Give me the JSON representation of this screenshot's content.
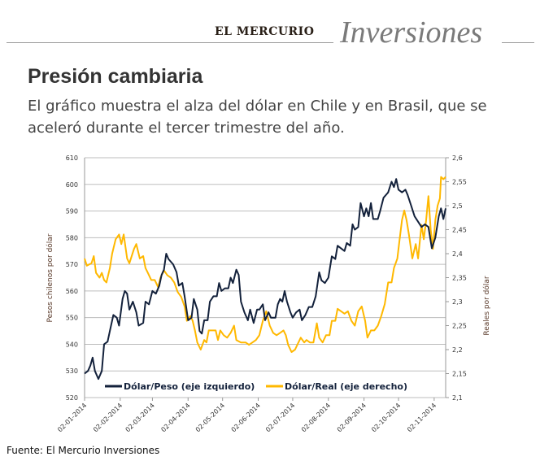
{
  "header": {
    "brand": "EL MERCURIO",
    "section": "Inversiones"
  },
  "title": "Presión cambiaria",
  "subtitle": "El gráfico muestra el alza del dólar en Chile y en Brasil, que se aceleró durante el tercer trimestre del año.",
  "source": "Fuente: El Mercurio Inversiones",
  "chart_data": {
    "type": "line",
    "xlabel": "",
    "ylabel": "Pesos chilenos por dólar",
    "y2label": "Reales por dólar",
    "xlim": [
      "2014-01-02",
      "2014-11-12"
    ],
    "ylim": [
      520,
      610
    ],
    "y2lim": [
      2.1,
      2.6
    ],
    "grid": true,
    "legend": "bottom-inside",
    "x_ticks": [
      "2014-01-02",
      "2014-02-02",
      "2014-03-02",
      "2014-04-02",
      "2014-05-02",
      "2014-06-02",
      "2014-07-02",
      "2014-08-02",
      "2014-09-02",
      "2014-10-02",
      "2014-11-02"
    ],
    "x_tick_labels": [
      "02-01-2014",
      "02-02-2014",
      "02-03-2014",
      "02-04-2014",
      "02-05-2014",
      "02-06-2014",
      "02-07-2014",
      "02-08-2014",
      "02-09-2014",
      "02-10-2014",
      "02-11-2014"
    ],
    "y_tick_labels": [
      "520",
      "530",
      "540",
      "550",
      "560",
      "570",
      "580",
      "590",
      "600",
      "610"
    ],
    "y2_tick_labels": [
      "2,1",
      "2,15",
      "2,2",
      "2,25",
      "2,3",
      "2,35",
      "2,4",
      "2,45",
      "2,5",
      "2,55",
      "2,6"
    ],
    "series": [
      {
        "name": "Dólar/Peso (eje izquierdo)",
        "axis": "left",
        "color": "#13213b",
        "points": [
          [
            "2014-01-02",
            529
          ],
          [
            "2014-01-05",
            530
          ],
          [
            "2014-01-07",
            532
          ],
          [
            "2014-01-09",
            535
          ],
          [
            "2014-01-11",
            530
          ],
          [
            "2014-01-14",
            527
          ],
          [
            "2014-01-17",
            530
          ],
          [
            "2014-01-19",
            540
          ],
          [
            "2014-01-22",
            541
          ],
          [
            "2014-01-24",
            545
          ],
          [
            "2014-01-27",
            551
          ],
          [
            "2014-01-30",
            550
          ],
          [
            "2014-02-01",
            547
          ],
          [
            "2014-02-04",
            557
          ],
          [
            "2014-02-06",
            560
          ],
          [
            "2014-02-08",
            559
          ],
          [
            "2014-02-10",
            553
          ],
          [
            "2014-02-13",
            556
          ],
          [
            "2014-02-16",
            552
          ],
          [
            "2014-02-18",
            547
          ],
          [
            "2014-02-22",
            548
          ],
          [
            "2014-02-24",
            556
          ],
          [
            "2014-02-27",
            555
          ],
          [
            "2014-03-02",
            560
          ],
          [
            "2014-03-05",
            559
          ],
          [
            "2014-03-08",
            562
          ],
          [
            "2014-03-10",
            566
          ],
          [
            "2014-03-12",
            568
          ],
          [
            "2014-03-14",
            574
          ],
          [
            "2014-03-16",
            572
          ],
          [
            "2014-03-20",
            570
          ],
          [
            "2014-03-23",
            567
          ],
          [
            "2014-03-25",
            562
          ],
          [
            "2014-03-28",
            563
          ],
          [
            "2014-03-30",
            558
          ],
          [
            "2014-04-02",
            549
          ],
          [
            "2014-04-05",
            550
          ],
          [
            "2014-04-07",
            557
          ],
          [
            "2014-04-10",
            553
          ],
          [
            "2014-04-12",
            545
          ],
          [
            "2014-04-14",
            544
          ],
          [
            "2014-04-16",
            549
          ],
          [
            "2014-04-19",
            549
          ],
          [
            "2014-04-21",
            556
          ],
          [
            "2014-04-24",
            558
          ],
          [
            "2014-04-27",
            558
          ],
          [
            "2014-04-29",
            563
          ],
          [
            "2014-05-01",
            560
          ],
          [
            "2014-05-04",
            561
          ],
          [
            "2014-05-07",
            561
          ],
          [
            "2014-05-09",
            565
          ],
          [
            "2014-05-11",
            563
          ],
          [
            "2014-05-14",
            568
          ],
          [
            "2014-05-16",
            566
          ],
          [
            "2014-05-18",
            556
          ],
          [
            "2014-05-21",
            552
          ],
          [
            "2014-05-24",
            549
          ],
          [
            "2014-05-26",
            553
          ],
          [
            "2014-05-29",
            548
          ],
          [
            "2014-06-01",
            553
          ],
          [
            "2014-06-03",
            553
          ],
          [
            "2014-06-06",
            555
          ],
          [
            "2014-06-08",
            549
          ],
          [
            "2014-06-11",
            552
          ],
          [
            "2014-06-13",
            550
          ],
          [
            "2014-06-17",
            550
          ],
          [
            "2014-06-19",
            555
          ],
          [
            "2014-06-21",
            557
          ],
          [
            "2014-06-23",
            556
          ],
          [
            "2014-06-25",
            560
          ],
          [
            "2014-06-27",
            556
          ],
          [
            "2014-06-30",
            552
          ],
          [
            "2014-07-02",
            550
          ],
          [
            "2014-07-05",
            552
          ],
          [
            "2014-07-08",
            553
          ],
          [
            "2014-07-10",
            549
          ],
          [
            "2014-07-13",
            551
          ],
          [
            "2014-07-16",
            554
          ],
          [
            "2014-07-19",
            554
          ],
          [
            "2014-07-22",
            558
          ],
          [
            "2014-07-25",
            567
          ],
          [
            "2014-07-27",
            564
          ],
          [
            "2014-07-30",
            563
          ],
          [
            "2014-08-02",
            565
          ],
          [
            "2014-08-05",
            573
          ],
          [
            "2014-08-08",
            572
          ],
          [
            "2014-08-10",
            577
          ],
          [
            "2014-08-13",
            576
          ],
          [
            "2014-08-16",
            575
          ],
          [
            "2014-08-18",
            578
          ],
          [
            "2014-08-21",
            577
          ],
          [
            "2014-08-23",
            585
          ],
          [
            "2014-08-25",
            583
          ],
          [
            "2014-08-28",
            584
          ],
          [
            "2014-08-30",
            593
          ],
          [
            "2014-09-02",
            588
          ],
          [
            "2014-09-04",
            591
          ],
          [
            "2014-09-06",
            588
          ],
          [
            "2014-09-08",
            593
          ],
          [
            "2014-09-10",
            587
          ],
          [
            "2014-09-14",
            587
          ],
          [
            "2014-09-16",
            590
          ],
          [
            "2014-09-19",
            595
          ],
          [
            "2014-09-21",
            596
          ],
          [
            "2014-09-23",
            597
          ],
          [
            "2014-09-26",
            601
          ],
          [
            "2014-09-28",
            599
          ],
          [
            "2014-09-30",
            602
          ],
          [
            "2014-10-02",
            598
          ],
          [
            "2014-10-05",
            597
          ],
          [
            "2014-10-08",
            598
          ],
          [
            "2014-10-10",
            596
          ],
          [
            "2014-10-13",
            592
          ],
          [
            "2014-10-16",
            588
          ],
          [
            "2014-10-19",
            586
          ],
          [
            "2014-10-22",
            584
          ],
          [
            "2014-10-25",
            585
          ],
          [
            "2014-10-28",
            584
          ],
          [
            "2014-10-31",
            576
          ],
          [
            "2014-11-03",
            580
          ],
          [
            "2014-11-06",
            588
          ],
          [
            "2014-11-08",
            591
          ],
          [
            "2014-11-10",
            587
          ],
          [
            "2014-11-12",
            591
          ]
        ]
      },
      {
        "name": "Dólar/Real (eje derecho)",
        "axis": "right",
        "color": "#ffb800",
        "points": [
          [
            "2014-01-02",
            2.39
          ],
          [
            "2014-01-04",
            2.375
          ],
          [
            "2014-01-08",
            2.38
          ],
          [
            "2014-01-10",
            2.395
          ],
          [
            "2014-01-12",
            2.36
          ],
          [
            "2014-01-15",
            2.35
          ],
          [
            "2014-01-17",
            2.36
          ],
          [
            "2014-01-19",
            2.345
          ],
          [
            "2014-01-21",
            2.34
          ],
          [
            "2014-01-24",
            2.37
          ],
          [
            "2014-01-26",
            2.4
          ],
          [
            "2014-01-29",
            2.43
          ],
          [
            "2014-02-01",
            2.44
          ],
          [
            "2014-02-03",
            2.42
          ],
          [
            "2014-02-05",
            2.44
          ],
          [
            "2014-02-08",
            2.39
          ],
          [
            "2014-02-10",
            2.38
          ],
          [
            "2014-02-14",
            2.41
          ],
          [
            "2014-02-16",
            2.42
          ],
          [
            "2014-02-19",
            2.39
          ],
          [
            "2014-02-22",
            2.395
          ],
          [
            "2014-02-24",
            2.37
          ],
          [
            "2014-02-26",
            2.36
          ],
          [
            "2014-03-01",
            2.345
          ],
          [
            "2014-03-04",
            2.345
          ],
          [
            "2014-03-07",
            2.33
          ],
          [
            "2014-03-09",
            2.35
          ],
          [
            "2014-03-12",
            2.365
          ],
          [
            "2014-03-15",
            2.355
          ],
          [
            "2014-03-18",
            2.35
          ],
          [
            "2014-03-21",
            2.34
          ],
          [
            "2014-03-24",
            2.32
          ],
          [
            "2014-03-27",
            2.31
          ],
          [
            "2014-03-30",
            2.29
          ],
          [
            "2014-04-01",
            2.26
          ],
          [
            "2014-04-04",
            2.27
          ],
          [
            "2014-04-06",
            2.26
          ],
          [
            "2014-04-08",
            2.24
          ],
          [
            "2014-04-10",
            2.215
          ],
          [
            "2014-04-13",
            2.2
          ],
          [
            "2014-04-16",
            2.22
          ],
          [
            "2014-04-18",
            2.215
          ],
          [
            "2014-04-20",
            2.24
          ],
          [
            "2014-04-23",
            2.24
          ],
          [
            "2014-04-26",
            2.24
          ],
          [
            "2014-04-28",
            2.22
          ],
          [
            "2014-04-30",
            2.24
          ],
          [
            "2014-05-03",
            2.23
          ],
          [
            "2014-05-06",
            2.225
          ],
          [
            "2014-05-09",
            2.235
          ],
          [
            "2014-05-12",
            2.25
          ],
          [
            "2014-05-14",
            2.22
          ],
          [
            "2014-05-18",
            2.215
          ],
          [
            "2014-05-22",
            2.215
          ],
          [
            "2014-05-25",
            2.21
          ],
          [
            "2014-05-28",
            2.215
          ],
          [
            "2014-05-31",
            2.22
          ],
          [
            "2014-06-03",
            2.23
          ],
          [
            "2014-06-06",
            2.26
          ],
          [
            "2014-06-09",
            2.28
          ],
          [
            "2014-06-12",
            2.25
          ],
          [
            "2014-06-15",
            2.235
          ],
          [
            "2014-06-18",
            2.23
          ],
          [
            "2014-06-21",
            2.235
          ],
          [
            "2014-06-24",
            2.24
          ],
          [
            "2014-06-26",
            2.23
          ],
          [
            "2014-06-28",
            2.21
          ],
          [
            "2014-07-01",
            2.195
          ],
          [
            "2014-07-04",
            2.2
          ],
          [
            "2014-07-06",
            2.21
          ],
          [
            "2014-07-09",
            2.225
          ],
          [
            "2014-07-12",
            2.215
          ],
          [
            "2014-07-14",
            2.22
          ],
          [
            "2014-07-17",
            2.215
          ],
          [
            "2014-07-20",
            2.215
          ],
          [
            "2014-07-23",
            2.255
          ],
          [
            "2014-07-25",
            2.225
          ],
          [
            "2014-07-28",
            2.215
          ],
          [
            "2014-07-31",
            2.23
          ],
          [
            "2014-08-03",
            2.23
          ],
          [
            "2014-08-05",
            2.26
          ],
          [
            "2014-08-08",
            2.26
          ],
          [
            "2014-08-10",
            2.285
          ],
          [
            "2014-08-13",
            2.28
          ],
          [
            "2014-08-16",
            2.275
          ],
          [
            "2014-08-19",
            2.28
          ],
          [
            "2014-08-22",
            2.26
          ],
          [
            "2014-08-25",
            2.25
          ],
          [
            "2014-08-28",
            2.28
          ],
          [
            "2014-08-31",
            2.29
          ],
          [
            "2014-09-03",
            2.26
          ],
          [
            "2014-09-05",
            2.225
          ],
          [
            "2014-09-08",
            2.24
          ],
          [
            "2014-09-11",
            2.24
          ],
          [
            "2014-09-14",
            2.25
          ],
          [
            "2014-09-17",
            2.27
          ],
          [
            "2014-09-20",
            2.295
          ],
          [
            "2014-09-23",
            2.34
          ],
          [
            "2014-09-26",
            2.34
          ],
          [
            "2014-09-28",
            2.37
          ],
          [
            "2014-10-01",
            2.39
          ],
          [
            "2014-10-03",
            2.43
          ],
          [
            "2014-10-05",
            2.47
          ],
          [
            "2014-10-07",
            2.49
          ],
          [
            "2014-10-09",
            2.47
          ],
          [
            "2014-10-11",
            2.44
          ],
          [
            "2014-10-14",
            2.39
          ],
          [
            "2014-10-17",
            2.42
          ],
          [
            "2014-10-19",
            2.39
          ],
          [
            "2014-10-22",
            2.46
          ],
          [
            "2014-10-24",
            2.43
          ],
          [
            "2014-10-26",
            2.47
          ],
          [
            "2014-10-28",
            2.52
          ],
          [
            "2014-10-30",
            2.45
          ],
          [
            "2014-11-01",
            2.41
          ],
          [
            "2014-11-03",
            2.47
          ],
          [
            "2014-11-05",
            2.5
          ],
          [
            "2014-11-07",
            2.515
          ],
          [
            "2014-11-08",
            2.56
          ],
          [
            "2014-11-10",
            2.555
          ],
          [
            "2014-11-12",
            2.56
          ]
        ]
      }
    ]
  }
}
